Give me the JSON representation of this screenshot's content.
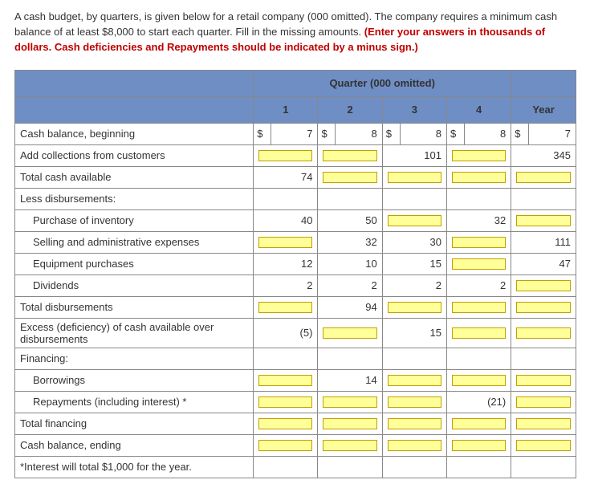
{
  "instructions": {
    "intro": "A cash budget, by quarters, is given below for a retail company (000 omitted). The company requires a minimum cash balance of at least $8,000 to start each quarter. Fill in the missing amounts. ",
    "highlight": "(Enter your answers in thousands of dollars. Cash deficiencies and Repayments should be indicated by a minus sign.)"
  },
  "table": {
    "group_header": "Quarter (000 omitted)",
    "col_headers": {
      "q1": "1",
      "q2": "2",
      "q3": "3",
      "q4": "4",
      "year": "Year"
    },
    "dollar": "$",
    "rows": {
      "cash_begin": {
        "label": "Cash balance, beginning",
        "q1": "7",
        "q2": "8",
        "q3": "8",
        "q4": "8",
        "year": "7"
      },
      "add_collections": {
        "label": "Add collections from customers",
        "q3": "101",
        "year": "345"
      },
      "total_avail": {
        "label": "Total cash available",
        "q1": "74"
      },
      "less_disb": {
        "label": "Less disbursements:"
      },
      "purchase_inv": {
        "label": "Purchase of inventory",
        "q1": "40",
        "q2": "50",
        "q4": "32"
      },
      "selling_admin": {
        "label": "Selling and administrative expenses",
        "q2": "32",
        "q3": "30",
        "year": "111"
      },
      "equip": {
        "label": "Equipment purchases",
        "q1": "12",
        "q2": "10",
        "q3": "15",
        "year": "47"
      },
      "dividends": {
        "label": "Dividends",
        "q1": "2",
        "q2": "2",
        "q3": "2",
        "q4": "2"
      },
      "total_disb": {
        "label": "Total disbursements",
        "q2": "94"
      },
      "excess": {
        "label": "Excess (deficiency) of cash available over disbursements",
        "q1": "(5)",
        "q3": "15"
      },
      "financing": {
        "label": "Financing:"
      },
      "borrowings": {
        "label": "Borrowings",
        "q2": "14"
      },
      "repayments": {
        "label": "Repayments (including interest) *",
        "q4": "(21)"
      },
      "total_fin": {
        "label": "Total financing"
      },
      "cash_end": {
        "label": "Cash balance, ending"
      },
      "footnote": {
        "label": "*Interest will total $1,000 for the year."
      }
    }
  }
}
